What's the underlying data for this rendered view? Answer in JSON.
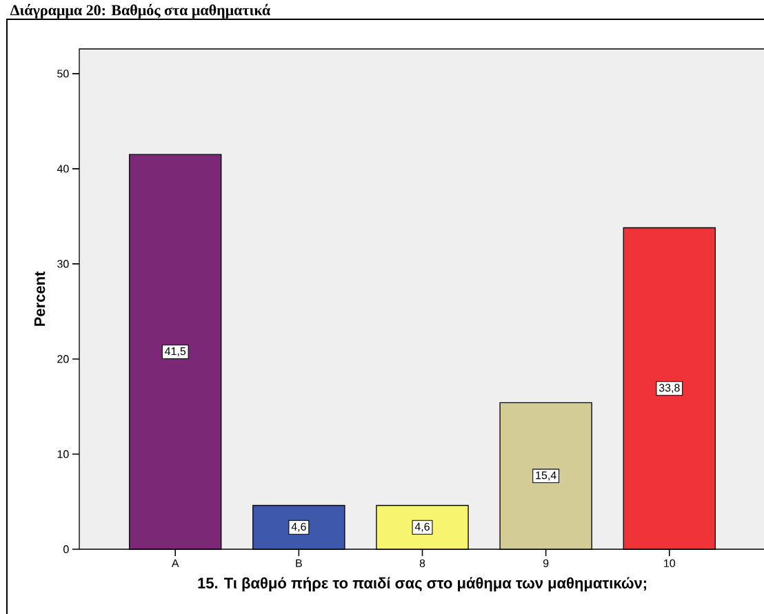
{
  "chart_data": {
    "type": "bar",
    "title": "Διάγραμμα 20: Βαθμός στα μαθηματικά",
    "xlabel": "15. Τι βαθμό πήρε το παιδί σας στο μάθημα των μαθηματικών;",
    "ylabel": "Percent",
    "categories": [
      "A",
      "B",
      "8",
      "9",
      "10"
    ],
    "values": [
      41.5,
      4.6,
      4.6,
      15.4,
      33.8
    ],
    "colors": [
      "#7b2877",
      "#3e58ac",
      "#f7f570",
      "#d4cc97",
      "#ef3338"
    ],
    "value_labels": [
      "41,5",
      "4,6",
      "4,6",
      "15,4",
      "33,8"
    ],
    "ylim": [
      0,
      52.6
    ],
    "yticks": [
      0,
      10,
      20,
      30,
      40,
      50
    ]
  }
}
